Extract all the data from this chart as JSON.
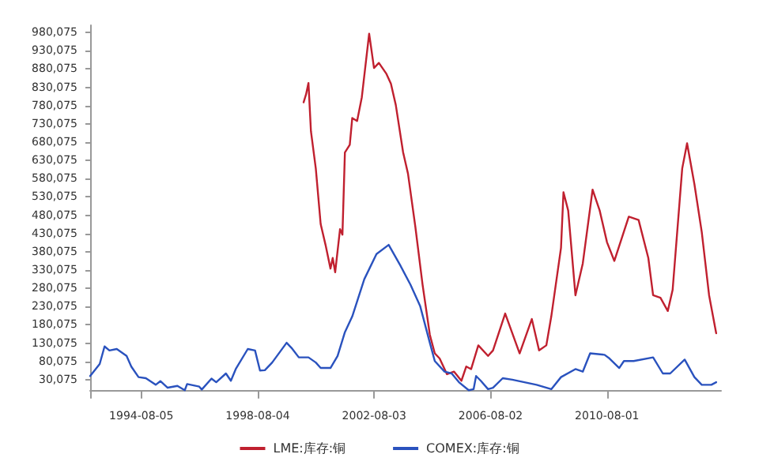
{
  "chart_data": {
    "type": "line",
    "xlim": [
      "1992-11-01",
      "2014-07-01"
    ],
    "xticks": [
      "1994-08-05",
      "1998-08-04",
      "2002-08-03",
      "2006-08-02",
      "2010-08-01"
    ],
    "ylim": [
      -20000,
      1000000
    ],
    "yticks": [
      {
        "value": 30075,
        "label": "30,075"
      },
      {
        "value": 80075,
        "label": "80,075"
      },
      {
        "value": 130075,
        "label": "130,075"
      },
      {
        "value": 180075,
        "label": "180,075"
      },
      {
        "value": 230075,
        "label": "230,075"
      },
      {
        "value": 280075,
        "label": "280,075"
      },
      {
        "value": 330075,
        "label": "330,075"
      },
      {
        "value": 380075,
        "label": "380,075"
      },
      {
        "value": 430075,
        "label": "430,075"
      },
      {
        "value": 480075,
        "label": "480,075"
      },
      {
        "value": 530075,
        "label": "530,075"
      },
      {
        "value": 580075,
        "label": "580,075"
      },
      {
        "value": 630075,
        "label": "630,075"
      },
      {
        "value": 680075,
        "label": "680,075"
      },
      {
        "value": 730075,
        "label": "730,075"
      },
      {
        "value": 780075,
        "label": "780,075"
      },
      {
        "value": 830075,
        "label": "830,075"
      },
      {
        "value": 880075,
        "label": "880,075"
      },
      {
        "value": 930075,
        "label": "930,075"
      },
      {
        "value": 980075,
        "label": "980,075"
      }
    ],
    "grid": false,
    "legend": "bottom",
    "marker": "none",
    "line_style": "solid",
    "series": [
      {
        "name": "LME:库存:铜",
        "color": "#c0202f",
        "x": [
          "2000-03",
          "2000-04",
          "2000-05",
          "2000-06",
          "2000-08",
          "2000-10",
          "2000-12",
          "2001-02",
          "2001-03",
          "2001-04",
          "2001-06",
          "2001-07",
          "2001-08",
          "2001-10",
          "2001-11",
          "2002-01",
          "2002-03",
          "2002-06",
          "2002-08",
          "2002-10",
          "2003-01",
          "2003-03",
          "2003-05",
          "2003-08",
          "2003-10",
          "2004-01",
          "2004-04",
          "2004-07",
          "2004-09",
          "2004-11",
          "2005-02",
          "2005-05",
          "2005-08",
          "2005-10",
          "2005-12",
          "2006-03",
          "2006-07",
          "2006-09",
          "2007-02",
          "2007-08",
          "2008-01",
          "2008-04",
          "2008-07",
          "2008-09",
          "2009-01",
          "2009-02",
          "2009-04",
          "2009-07",
          "2009-10",
          "2010-02",
          "2010-05",
          "2010-08",
          "2010-11",
          "2011-05",
          "2011-09",
          "2012-01",
          "2012-03",
          "2012-06",
          "2012-09",
          "2012-11",
          "2013-03",
          "2013-05",
          "2013-08",
          "2013-11",
          "2014-02",
          "2014-05"
        ],
        "values": [
          789000,
          811000,
          842000,
          710000,
          608000,
          456000,
          399000,
          334000,
          363000,
          324000,
          442000,
          427000,
          652000,
          673000,
          746000,
          738000,
          803000,
          977000,
          883000,
          897000,
          868000,
          840000,
          782000,
          652000,
          594000,
          449000,
          290000,
          153000,
          102000,
          88000,
          45000,
          52000,
          27000,
          66000,
          59000,
          124000,
          95000,
          110000,
          211000,
          102000,
          196000,
          110000,
          124000,
          203000,
          391000,
          543000,
          493000,
          261000,
          348000,
          550000,
          493000,
          406000,
          355000,
          476000,
          467000,
          363000,
          261000,
          254000,
          218000,
          276000,
          608000,
          677000,
          565000,
          434000,
          261000,
          157000
        ]
      },
      {
        "name": "COMEX:库存:铜",
        "color": "#2a52be",
        "x": [
          "1992-11",
          "1993-03",
          "1993-05",
          "1993-07",
          "1993-10",
          "1994-02",
          "1994-04",
          "1994-07",
          "1994-10",
          "1995-02",
          "1995-04",
          "1995-07",
          "1995-11",
          "1996-02",
          "1996-03",
          "1996-08",
          "1996-09",
          "1997-01",
          "1997-03",
          "1997-07",
          "1997-09",
          "1997-11",
          "1998-04",
          "1998-07",
          "1998-09",
          "1998-11",
          "1999-02",
          "1999-08",
          "1999-10",
          "2000-01",
          "2000-05",
          "2000-08",
          "2000-10",
          "2001-02",
          "2001-05",
          "2001-08",
          "2001-11",
          "2002-04",
          "2002-09",
          "2003-02",
          "2003-07",
          "2003-11",
          "2004-03",
          "2004-07",
          "2004-09",
          "2005-01",
          "2005-04",
          "2005-07",
          "2005-11",
          "2006-01",
          "2006-02",
          "2006-04",
          "2006-07",
          "2006-09",
          "2007-01",
          "2007-05",
          "2008-03",
          "2008-09",
          "2009-01",
          "2009-07",
          "2009-10",
          "2010-01",
          "2010-07",
          "2010-09",
          "2011-01",
          "2011-03",
          "2011-07",
          "2012-03",
          "2012-07",
          "2012-10",
          "2013-04",
          "2013-08",
          "2013-11",
          "2014-03",
          "2014-05"
        ],
        "values": [
          40000,
          73000,
          121000,
          110000,
          114000,
          95000,
          66000,
          37000,
          34000,
          16000,
          26000,
          8000,
          13000,
          1000,
          18000,
          11000,
          3000,
          33000,
          23000,
          47000,
          27000,
          59000,
          114000,
          110000,
          55000,
          56000,
          77000,
          131000,
          117000,
          91000,
          91000,
          77000,
          62000,
          62000,
          95000,
          160000,
          203000,
          305000,
          374000,
          399000,
          341000,
          290000,
          232000,
          131000,
          81000,
          52000,
          47000,
          23000,
          1000,
          4000,
          40000,
          27000,
          4000,
          8000,
          34000,
          30000,
          16000,
          4000,
          37000,
          59000,
          52000,
          102000,
          98000,
          88000,
          62000,
          81000,
          81000,
          91000,
          47000,
          47000,
          85000,
          37000,
          16000,
          16000,
          23000
        ]
      }
    ]
  }
}
